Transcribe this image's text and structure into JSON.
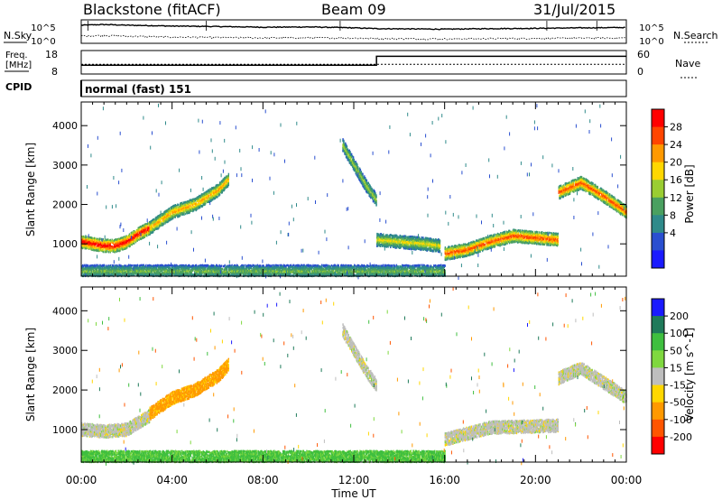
{
  "header": {
    "station": "Blackstone (fitACF)",
    "beam": "Beam 09",
    "date": "31/Jul/2015"
  },
  "strip_labels": {
    "nsky": "N.Sky",
    "nsearch": "N.Search",
    "freq_line1": "Freq.",
    "freq_line2": "[MHz]",
    "nave": "Nave",
    "cpid": "CPID",
    "noise_top": "10^5",
    "noise_bottom": "10^0",
    "freq_top": "18",
    "freq_bottom": "8",
    "nave_top": "60",
    "nave_bottom": "0"
  },
  "cpid_text": "normal (fast) 151",
  "time_axis": {
    "label": "Time UT",
    "ticks": [
      "00:00",
      "04:00",
      "08:00",
      "12:00",
      "16:00",
      "20:00",
      "00:00"
    ],
    "range_hours": [
      0,
      24
    ]
  },
  "colors": {
    "power": [
      "#1a1aff",
      "#2a4fd0",
      "#2f8a8a",
      "#4aa060",
      "#9acd32",
      "#ffd700",
      "#ff9900",
      "#ff4500",
      "#ff0000"
    ],
    "velocity": [
      "#1a1aff",
      "#1f7a5a",
      "#3fbf3f",
      "#7fd83f",
      "#bebebe",
      "#ffd700",
      "#ff9900",
      "#ff5500",
      "#ff0000"
    ]
  },
  "chart_data": [
    {
      "type": "line",
      "panel": "noise",
      "ylabel": "N.Sky / N.Search",
      "yscale": "log",
      "ylim": [
        1,
        100000
      ],
      "series": [
        {
          "name": "N.Sky",
          "x": [
            0,
            1,
            2,
            4,
            6,
            8,
            10,
            12,
            13,
            16,
            18,
            20,
            22,
            24
          ],
          "y": [
            20000,
            30000,
            20000,
            12000,
            9000,
            6000,
            7000,
            4000,
            2500,
            1800,
            2500,
            3000,
            4000,
            5000
          ]
        },
        {
          "name": "N.Search",
          "x": [
            0,
            1,
            2,
            4,
            6,
            8,
            10,
            12,
            13,
            16,
            18,
            20,
            22,
            24
          ],
          "y": [
            30,
            40,
            25,
            15,
            12,
            9,
            10,
            8,
            6,
            5,
            6,
            7,
            8,
            9
          ]
        }
      ]
    },
    {
      "type": "line",
      "panel": "frequency",
      "ylabel": "Freq. [MHz]",
      "ylim": [
        8,
        18
      ],
      "y2label": "Nave",
      "y2lim": [
        0,
        60
      ],
      "series": [
        {
          "name": "Freq.",
          "x": [
            0,
            13,
            13,
            24
          ],
          "y": [
            11.5,
            11.5,
            16,
            16
          ]
        },
        {
          "name": "Nave",
          "x": [
            0,
            13,
            13,
            24
          ],
          "y": [
            24,
            24,
            24,
            24
          ]
        }
      ]
    },
    {
      "type": "heatmap",
      "panel": "power",
      "ylabel": "Slant Range [km]",
      "ylim": [
        180,
        4600
      ],
      "yticks": [
        1000,
        2000,
        3000,
        4000
      ],
      "colorbar_label": "Power [dB]",
      "colorbar_ticks": [
        "4",
        "8",
        "12",
        "16",
        "20",
        "24",
        "28"
      ],
      "crange": [
        0,
        30
      ],
      "features": [
        {
          "t": [
            0,
            0.5,
            1,
            1.5,
            2,
            2.5,
            3
          ],
          "r": [
            1050,
            1000,
            950,
            950,
            1050,
            1250,
            1400
          ],
          "peak_db": 30
        },
        {
          "t": [
            3,
            4,
            5,
            6,
            6.5
          ],
          "r": [
            1400,
            1800,
            2000,
            2350,
            2650
          ],
          "peak_db": 22
        },
        {
          "t": [
            0,
            2,
            4,
            6,
            8,
            10,
            12,
            14,
            16
          ],
          "r": [
            300,
            300,
            300,
            300,
            300,
            300,
            300,
            300,
            300
          ],
          "peak_db": 14
        },
        {
          "t": [
            11.5,
            12,
            12.5,
            13
          ],
          "r": [
            3500,
            3000,
            2500,
            2100
          ],
          "peak_db": 16
        },
        {
          "t": [
            13,
            14,
            15,
            15.8
          ],
          "r": [
            1100,
            1050,
            1000,
            950
          ],
          "peak_db": 18
        },
        {
          "t": [
            16,
            17,
            18,
            19,
            20,
            21
          ],
          "r": [
            750,
            850,
            1050,
            1200,
            1150,
            1100
          ],
          "peak_db": 26
        },
        {
          "t": [
            21,
            22,
            23,
            24
          ],
          "r": [
            2300,
            2550,
            2200,
            1800
          ],
          "peak_db": 26
        }
      ]
    },
    {
      "type": "heatmap",
      "panel": "velocity",
      "ylabel": "Slant Range [km]",
      "ylim": [
        180,
        4600
      ],
      "yticks": [
        1000,
        2000,
        3000,
        4000
      ],
      "colorbar_label": "Velocity [m s^-1]",
      "colorbar_ticks": [
        "200",
        "100",
        "50",
        "15",
        "-15",
        "-50",
        "-100",
        "-200"
      ],
      "features": [
        {
          "t": [
            0,
            1,
            2,
            3
          ],
          "r": [
            1000,
            950,
            1000,
            1350
          ],
          "v": 0
        },
        {
          "t": [
            3,
            4,
            5,
            6,
            6.5
          ],
          "r": [
            1400,
            1800,
            2000,
            2350,
            2650
          ],
          "v": -60
        },
        {
          "t": [
            0,
            4,
            8,
            12,
            16
          ],
          "r": [
            300,
            300,
            300,
            300,
            300
          ],
          "v": 40
        },
        {
          "t": [
            11.5,
            12.5,
            13
          ],
          "r": [
            3500,
            2500,
            2100
          ],
          "v": 0
        },
        {
          "t": [
            16,
            18,
            21
          ],
          "r": [
            750,
            1050,
            1100
          ],
          "v": 0
        },
        {
          "t": [
            21,
            22,
            24
          ],
          "r": [
            2300,
            2550,
            1800
          ],
          "v": 0
        }
      ]
    }
  ]
}
